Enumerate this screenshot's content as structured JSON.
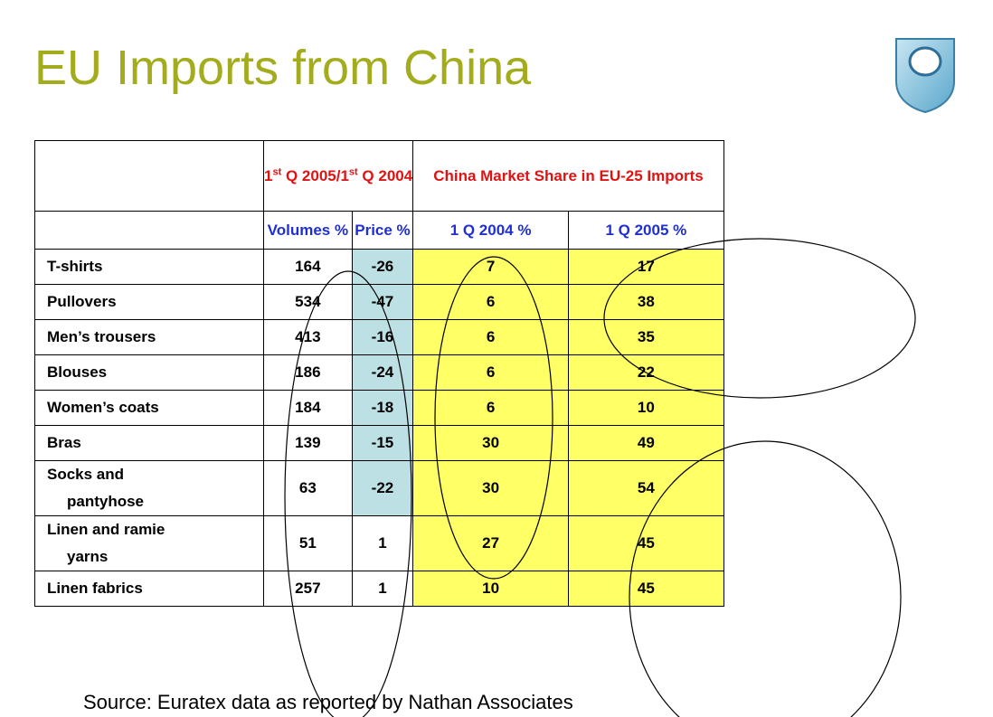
{
  "title": "EU Imports from China",
  "header": {
    "group1_prefix": "1",
    "group1_sup1": "st",
    "group1_mid": " Q 2005/1",
    "group1_sup2": "st",
    "group1_suffix": " Q 2004",
    "group2": "China Market Share in EU-25 Imports",
    "col_volumes": "Volumes %",
    "col_price": "Price %",
    "col_2004": "1 Q 2004 %",
    "col_2005": "1 Q 2005 %"
  },
  "rows": [
    {
      "label1": "T-shirts",
      "label2": "",
      "volumes": "164",
      "price": "-26",
      "share2004": "7",
      "share2005": "17"
    },
    {
      "label1": "Pullovers",
      "label2": "",
      "volumes": "534",
      "price": "-47",
      "share2004": "6",
      "share2005": "38"
    },
    {
      "label1": "Men’s trousers",
      "label2": "",
      "volumes": "413",
      "price": "-16",
      "share2004": "6",
      "share2005": "35"
    },
    {
      "label1": "Blouses",
      "label2": "",
      "volumes": "186",
      "price": "-24",
      "share2004": "6",
      "share2005": "22"
    },
    {
      "label1": "Women’s coats",
      "label2": "",
      "volumes": "184",
      "price": "-18",
      "share2004": "6",
      "share2005": "10"
    },
    {
      "label1": "Bras",
      "label2": "",
      "volumes": "139",
      "price": "-15",
      "share2004": "30",
      "share2005": "49"
    },
    {
      "label1": "Socks and",
      "label2": "pantyhose",
      "volumes": "63",
      "price": "-22",
      "share2004": "30",
      "share2005": "54"
    },
    {
      "label1": "Linen and ramie",
      "label2": "yarns",
      "volumes": "51",
      "price": "1",
      "share2004": "27",
      "share2005": "45"
    },
    {
      "label1": "Linen fabrics",
      "label2": "",
      "volumes": "257",
      "price": "1",
      "share2004": "10",
      "share2005": "45"
    }
  ],
  "source": "Source: Euratex data as reported by Nathan Associates",
  "colors": {
    "title": "#a3ac1d",
    "header_red": "#e01212",
    "header_blue": "#1f2fd4",
    "price_fill": "#bde0e4",
    "share_fill": "#ffff66"
  }
}
